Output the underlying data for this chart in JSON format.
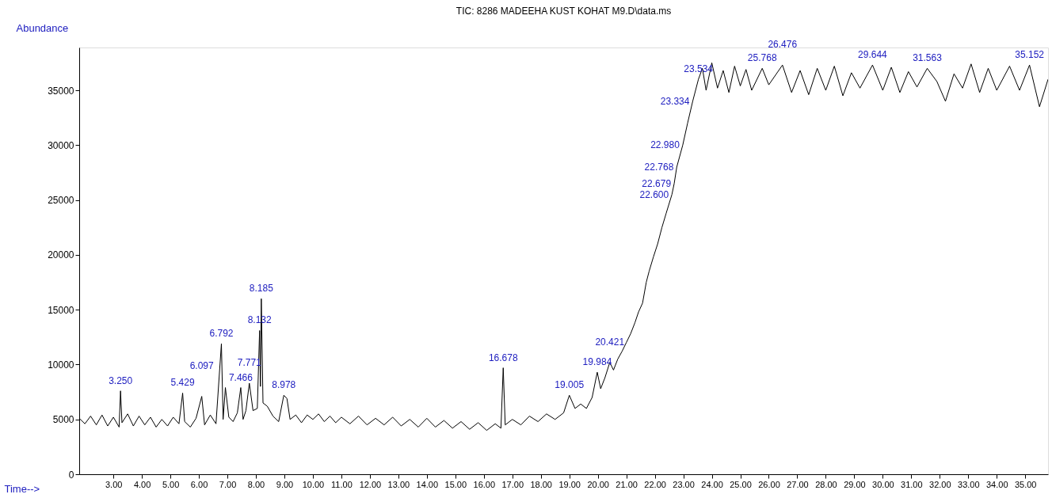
{
  "chart_data": {
    "type": "line",
    "title": "TIC: 8286 MADEEHA KUST KOHAT M9.D\\data.ms",
    "xlabel": "Time-->",
    "ylabel": "Abundance",
    "x": [
      1.8,
      2.0,
      2.2,
      2.4,
      2.6,
      2.8,
      3.0,
      3.2,
      3.25,
      3.3,
      3.5,
      3.7,
      3.9,
      4.1,
      4.3,
      4.5,
      4.7,
      4.9,
      5.1,
      5.3,
      5.43,
      5.5,
      5.7,
      5.9,
      6.1,
      6.2,
      6.4,
      6.6,
      6.79,
      6.85,
      6.93,
      7.05,
      7.2,
      7.35,
      7.47,
      7.55,
      7.65,
      7.77,
      7.9,
      8.05,
      8.13,
      8.16,
      8.19,
      8.25,
      8.4,
      8.6,
      8.8,
      8.98,
      9.09,
      9.2,
      9.4,
      9.6,
      9.8,
      10.0,
      10.2,
      10.4,
      10.6,
      10.8,
      11.0,
      11.3,
      11.6,
      11.9,
      12.2,
      12.5,
      12.8,
      13.1,
      13.4,
      13.7,
      14.0,
      14.3,
      14.6,
      14.9,
      15.2,
      15.5,
      15.8,
      16.1,
      16.4,
      16.6,
      16.68,
      16.75,
      17.0,
      17.3,
      17.6,
      17.9,
      18.2,
      18.5,
      18.8,
      19.0,
      19.2,
      19.4,
      19.6,
      19.8,
      19.98,
      20.1,
      20.25,
      20.42,
      20.55,
      20.7,
      20.85,
      21.0,
      21.15,
      21.3,
      21.43,
      21.57,
      21.7,
      21.8,
      21.95,
      22.1,
      22.25,
      22.4,
      22.6,
      22.68,
      22.77,
      22.98,
      23.15,
      23.33,
      23.53,
      23.67,
      23.8,
      24.0,
      24.2,
      24.4,
      24.6,
      24.8,
      25.0,
      25.2,
      25.4,
      25.77,
      26.0,
      26.48,
      26.8,
      27.1,
      27.4,
      27.7,
      28.0,
      28.3,
      28.6,
      28.9,
      29.2,
      29.64,
      30.0,
      30.3,
      30.6,
      30.9,
      31.2,
      31.56,
      31.9,
      32.2,
      32.5,
      32.8,
      33.1,
      33.4,
      33.7,
      34.0,
      34.45,
      34.8,
      35.15,
      35.5,
      35.8
    ],
    "series": [
      {
        "color": "#000000",
        "values": [
          5100,
          4600,
          5300,
          4500,
          5400,
          4400,
          5200,
          4300,
          7600,
          4700,
          5500,
          4400,
          5300,
          4500,
          5200,
          4300,
          5000,
          4400,
          5200,
          4600,
          7400,
          4800,
          4300,
          5100,
          7100,
          4500,
          5400,
          4600,
          11900,
          5000,
          7900,
          5200,
          4800,
          5600,
          7900,
          5000,
          5800,
          8300,
          5800,
          6000,
          13100,
          8000,
          16000,
          6500,
          6200,
          5300,
          4800,
          7200,
          6900,
          5000,
          5400,
          4700,
          5400,
          5000,
          5500,
          4800,
          5300,
          4700,
          5200,
          4600,
          5300,
          4500,
          5100,
          4500,
          5200,
          4400,
          5000,
          4300,
          5100,
          4300,
          4900,
          4200,
          4800,
          4100,
          4700,
          4000,
          4600,
          4200,
          9700,
          4500,
          5000,
          4500,
          5300,
          4800,
          5500,
          5000,
          5600,
          7200,
          6000,
          6400,
          6000,
          7000,
          9300,
          7800,
          8800,
          10200,
          9500,
          10500,
          11200,
          12000,
          12800,
          13800,
          14800,
          15600,
          17500,
          18500,
          19800,
          21000,
          22500,
          23800,
          25500,
          26500,
          28000,
          30000,
          32000,
          34000,
          36000,
          37000,
          35000,
          37500,
          35200,
          36800,
          34800,
          37200,
          35400,
          36900,
          35000,
          37000,
          35500,
          37300,
          34800,
          36800,
          34600,
          37000,
          35000,
          37200,
          34500,
          36600,
          35200,
          37300,
          35000,
          37100,
          34800,
          36700,
          35300,
          37000,
          35800,
          34000,
          36500,
          35200,
          37400,
          34800,
          37000,
          35000,
          37200,
          35000,
          37300,
          33500,
          36000
        ]
      }
    ],
    "xlim": [
      1.8,
      35.8
    ],
    "ylim": [
      0,
      38900
    ],
    "xticks": [
      {
        "value": 3,
        "label": "3.00"
      },
      {
        "value": 4,
        "label": "4.00"
      },
      {
        "value": 5,
        "label": "5.00"
      },
      {
        "value": 6,
        "label": "6.00"
      },
      {
        "value": 7,
        "label": "7.00"
      },
      {
        "value": 8,
        "label": "8.00"
      },
      {
        "value": 9,
        "label": "9.00"
      },
      {
        "value": 10,
        "label": "10.00"
      },
      {
        "value": 11,
        "label": "11.00"
      },
      {
        "value": 12,
        "label": "12.00"
      },
      {
        "value": 13,
        "label": "13.00"
      },
      {
        "value": 14,
        "label": "14.00"
      },
      {
        "value": 15,
        "label": "15.00"
      },
      {
        "value": 16,
        "label": "16.00"
      },
      {
        "value": 17,
        "label": "17.00"
      },
      {
        "value": 18,
        "label": "18.00"
      },
      {
        "value": 19,
        "label": "19.00"
      },
      {
        "value": 20,
        "label": "20.00"
      },
      {
        "value": 21,
        "label": "21.00"
      },
      {
        "value": 22,
        "label": "22.00"
      },
      {
        "value": 23,
        "label": "23.00"
      },
      {
        "value": 24,
        "label": "24.00"
      },
      {
        "value": 25,
        "label": "25.00"
      },
      {
        "value": 26,
        "label": "26.00"
      },
      {
        "value": 27,
        "label": "27.00"
      },
      {
        "value": 28,
        "label": "28.00"
      },
      {
        "value": 29,
        "label": "29.00"
      },
      {
        "value": 30,
        "label": "30.00"
      },
      {
        "value": 31,
        "label": "31.00"
      },
      {
        "value": 32,
        "label": "32.00"
      },
      {
        "value": 33,
        "label": "33.00"
      },
      {
        "value": 34,
        "label": "34.00"
      },
      {
        "value": 35,
        "label": "35.00"
      }
    ],
    "yticks": [
      0,
      5000,
      10000,
      15000,
      20000,
      25000,
      30000,
      35000
    ],
    "grid": false,
    "annotations": [
      {
        "text": "3.250",
        "x": 3.25,
        "y": 7600
      },
      {
        "text": "5.429",
        "x": 5.43,
        "y": 7400
      },
      {
        "text": "6.097",
        "x": 6.1,
        "y": 7100
      },
      {
        "text": "6.792",
        "x": 6.79,
        "y": 11900
      },
      {
        "text": "7.466",
        "x": 7.47,
        "y": 7900
      },
      {
        "text": "7.771",
        "x": 7.77,
        "y": 8300
      },
      {
        "text": "8.132",
        "x": 8.13,
        "y": 13100
      },
      {
        "text": "8.185",
        "x": 8.19,
        "y": 16000
      },
      {
        "text": "8.978",
        "x": 8.98,
        "y": 7200
      },
      {
        "text": "16.678",
        "x": 16.68,
        "y": 9700
      },
      {
        "text": "19.005",
        "x": 19.0,
        "y": 7200
      },
      {
        "text": "19.984",
        "x": 19.98,
        "y": 9300
      },
      {
        "text": "20.421",
        "x": 20.42,
        "y": 10200
      },
      {
        "text": "22.600",
        "x": 22.6,
        "y": 25500
      },
      {
        "text": "22.679",
        "x": 22.68,
        "y": 26500
      },
      {
        "text": "22.768",
        "x": 22.77,
        "y": 28000
      },
      {
        "text": "22.980",
        "x": 22.98,
        "y": 30000
      },
      {
        "text": "23.334",
        "x": 23.33,
        "y": 34000
      },
      {
        "text": "23.534",
        "x": 23.53,
        "y": 36000
      },
      {
        "text": "25.768",
        "x": 25.77,
        "y": 37000
      },
      {
        "text": "26.476",
        "x": 26.48,
        "y": 37300
      },
      {
        "text": "29.644",
        "x": 29.64,
        "y": 37300
      },
      {
        "text": "31.563",
        "x": 31.56,
        "y": 37000
      },
      {
        "text": "35.152",
        "x": 35.15,
        "y": 37300
      }
    ]
  }
}
